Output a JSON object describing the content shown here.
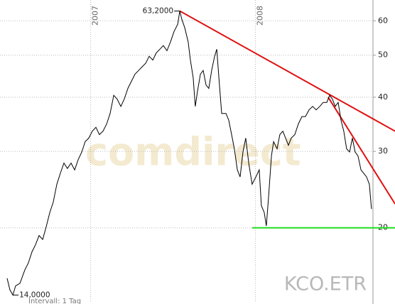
{
  "chart_data": {
    "type": "line",
    "log_y": true,
    "grid": true,
    "color": "#000000",
    "symbol": "KCO.ETR",
    "watermark": "comdirect",
    "footer": "Intervall: 1 Tag",
    "xlim": [
      2006.45,
      2008.713
    ],
    "xticks": [
      2007,
      2008
    ],
    "ylim": [
      13.5,
      67
    ],
    "yticks": [
      20,
      30,
      40,
      50,
      60
    ],
    "x": [
      2006.493,
      2006.51,
      2006.528,
      2006.545,
      2006.571,
      2006.601,
      2006.622,
      2006.644,
      2006.666,
      2006.687,
      2006.709,
      2006.73,
      2006.752,
      2006.773,
      2006.795,
      2006.816,
      2006.838,
      2006.859,
      2006.881,
      2006.903,
      2006.924,
      2006.946,
      2006.967,
      2006.989,
      2007.01,
      2007.032,
      2007.053,
      2007.075,
      2007.097,
      2007.118,
      2007.14,
      2007.161,
      2007.183,
      2007.204,
      2007.226,
      2007.247,
      2007.269,
      2007.291,
      2007.312,
      2007.334,
      2007.355,
      2007.377,
      2007.398,
      2007.42,
      2007.441,
      2007.463,
      2007.484,
      2007.506,
      2007.528,
      2007.541,
      2007.553,
      2007.571,
      2007.592,
      2007.605,
      2007.622,
      2007.635,
      2007.648,
      2007.666,
      2007.683,
      2007.7,
      2007.717,
      2007.734,
      2007.752,
      2007.765,
      2007.778,
      2007.795,
      2007.821,
      2007.838,
      2007.855,
      2007.872,
      2007.89,
      2007.907,
      2007.924,
      2007.941,
      2007.959,
      2007.98,
      2008.002,
      2008.023,
      2008.036,
      2008.053,
      2008.066,
      2008.079,
      2008.097,
      2008.11,
      2008.131,
      2008.148,
      2008.166,
      2008.183,
      2008.2,
      2008.217,
      2008.239,
      2008.26,
      2008.282,
      2008.303,
      2008.325,
      2008.347,
      2008.368,
      2008.39,
      2008.411,
      2008.433,
      2008.45,
      2008.467,
      2008.484,
      2008.502,
      2008.519,
      2008.536,
      2008.553,
      2008.571,
      2008.588,
      2008.605,
      2008.622,
      2008.64,
      2008.657,
      2008.674,
      2008.691,
      2008.704
    ],
    "values": [
      15.3,
      14.4,
      14.0,
      14.7,
      14.9,
      16.0,
      16.6,
      17.6,
      18.3,
      19.2,
      18.8,
      20.1,
      21.7,
      22.9,
      25.2,
      26.7,
      28.2,
      27.4,
      28.2,
      27.2,
      28.7,
      29.9,
      31.6,
      32.2,
      33.4,
      34.1,
      32.8,
      33.4,
      34.7,
      36.7,
      40.4,
      39.6,
      38.1,
      39.6,
      41.9,
      43.5,
      45.2,
      46.1,
      47.0,
      47.9,
      49.7,
      48.7,
      50.6,
      51.6,
      52.6,
      51.2,
      53.6,
      56.7,
      58.9,
      63.2,
      60.5,
      57.8,
      53.6,
      48.7,
      44.4,
      38.1,
      41.2,
      45.2,
      46.1,
      42.7,
      41.9,
      46.1,
      49.7,
      51.6,
      44.4,
      36.7,
      36.7,
      35.4,
      32.8,
      30.4,
      27.2,
      26.2,
      29.9,
      32.2,
      28.2,
      25.2,
      26.2,
      27.2,
      22.5,
      21.7,
      20.2,
      23.4,
      29.3,
      31.6,
      30.4,
      32.8,
      33.4,
      32.2,
      31.0,
      32.2,
      32.8,
      34.7,
      36.1,
      36.1,
      37.4,
      38.1,
      37.4,
      38.1,
      38.9,
      38.9,
      40.4,
      39.6,
      38.1,
      38.9,
      35.4,
      33.4,
      30.4,
      29.9,
      32.2,
      29.9,
      29.3,
      27.2,
      26.7,
      26.2,
      25.2,
      22.1
    ],
    "annotations": [
      {
        "text": "63,2000",
        "x": 2007.541,
        "y": 63.2
      },
      {
        "text": "14,0000",
        "x": 2006.528,
        "y": 14.0
      }
    ],
    "trendlines": [
      {
        "color": "#e01010",
        "x": [
          2007.541,
          2008.847
        ],
        "y": [
          63.2,
          33.4
        ]
      },
      {
        "color": "#e01010",
        "x": [
          2008.441,
          2008.847
        ],
        "y": [
          40.0,
          22.7
        ]
      },
      {
        "color": "#22dd22",
        "x": [
          2007.98,
          2008.847
        ],
        "y": [
          20,
          20
        ]
      }
    ]
  }
}
